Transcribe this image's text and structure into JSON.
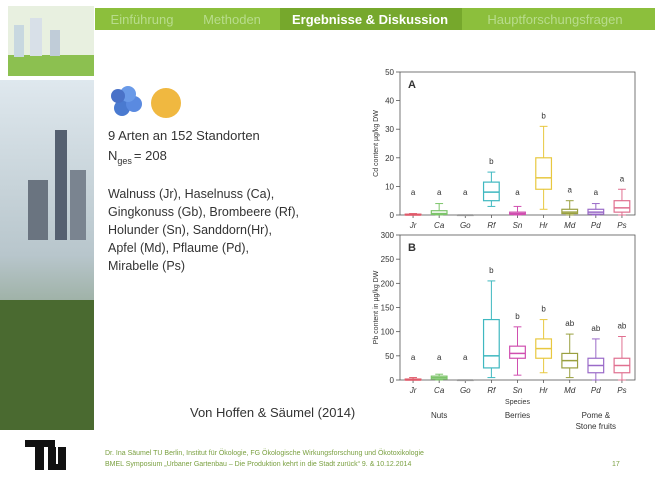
{
  "tabs": [
    "Einführung",
    "Methoden",
    "Ergebnisse & Diskussion",
    "Hauptforschungsfragen"
  ],
  "species_info": {
    "count_line": "9 Arten an 152 Standorten",
    "n_label": "N",
    "n_sub": "ges",
    "n_value": "= 208",
    "species_lines": [
      "Walnuss (Jr), Haselnuss (Ca),",
      "Gingkonuss (Gb), Brombeere (Rf),",
      "Holunder (Sn), Sanddorn(Hr),",
      "Apfel (Md), Pflaume (Pd),",
      "Mirabelle (Ps)"
    ]
  },
  "citation": "Von Hoffen & Säumel (2014)",
  "footer": {
    "lines": [
      "Dr. Ina Säumel TU Berlin, Institut für Ökologie, FG Ökologische Wirkungsforschung und Ökotoxikologie",
      "BMEL Symposium „Urbaner Gartenbau – Die Produktion kehrt in die Stadt zurück“ 9. & 10.12.2014"
    ],
    "page": "17"
  },
  "chart_data": [
    {
      "type": "box",
      "panel": "A",
      "ylabel": "Cd content µg/kg DW",
      "categories": [
        "Jr",
        "Ca",
        "Go",
        "Rf",
        "Sn",
        "Hr",
        "Md",
        "Pd",
        "Ps"
      ],
      "colors": [
        "#e05a6a",
        "#7cc46a",
        "#999999",
        "#3fb8c0",
        "#d04fb0",
        "#e8c840",
        "#9aa040",
        "#9a6ac8",
        "#e07090"
      ],
      "boxes": [
        {
          "min": 0,
          "q1": 0,
          "median": 0,
          "q3": 0.3,
          "max": 0.5
        },
        {
          "min": 0,
          "q1": 0.2,
          "median": 0.5,
          "q3": 1.5,
          "max": 4
        },
        {
          "min": 0,
          "q1": 0,
          "median": 0,
          "q3": 0,
          "max": 0
        },
        {
          "min": 3,
          "q1": 5,
          "median": 8,
          "q3": 11.5,
          "max": 15
        },
        {
          "min": 0,
          "q1": 0.2,
          "median": 0.5,
          "q3": 1,
          "max": 3
        },
        {
          "min": 2,
          "q1": 9,
          "median": 13,
          "q3": 20,
          "max": 31
        },
        {
          "min": 0,
          "q1": 0.5,
          "median": 1,
          "q3": 2,
          "max": 5
        },
        {
          "min": 0,
          "q1": 0.3,
          "median": 1,
          "q3": 2,
          "max": 4
        },
        {
          "min": 0,
          "q1": 1,
          "median": 2.5,
          "q3": 5,
          "max": 9
        }
      ],
      "letters": [
        "a",
        "a",
        "a",
        "b",
        "a",
        "b",
        "a",
        "a",
        "a"
      ],
      "ylim": [
        0,
        50
      ],
      "yticks": [
        0,
        10,
        20,
        30,
        40,
        50
      ]
    },
    {
      "type": "box",
      "panel": "B",
      "ylabel": "Pb content in µg/kg DW",
      "xlabel": "Species",
      "categories": [
        "Jr",
        "Ca",
        "Go",
        "Rf",
        "Sn",
        "Hr",
        "Md",
        "Pd",
        "Ps"
      ],
      "colors": [
        "#e05a6a",
        "#7cc46a",
        "#999999",
        "#3fb8c0",
        "#d04fb0",
        "#e8c840",
        "#9aa040",
        "#9a6ac8",
        "#e07090"
      ],
      "boxes": [
        {
          "min": 0,
          "q1": 0,
          "median": 0,
          "q3": 2,
          "max": 5
        },
        {
          "min": 0,
          "q1": 2,
          "median": 5,
          "q3": 8,
          "max": 12
        },
        {
          "min": 0,
          "q1": 0,
          "median": 0,
          "q3": 0,
          "max": 0
        },
        {
          "min": 5,
          "q1": 25,
          "median": 50,
          "q3": 125,
          "max": 205
        },
        {
          "min": 10,
          "q1": 45,
          "median": 55,
          "q3": 70,
          "max": 110
        },
        {
          "min": 15,
          "q1": 45,
          "median": 65,
          "q3": 85,
          "max": 125
        },
        {
          "min": 5,
          "q1": 25,
          "median": 40,
          "q3": 55,
          "max": 95
        },
        {
          "min": 0,
          "q1": 15,
          "median": 30,
          "q3": 45,
          "max": 85
        },
        {
          "min": 0,
          "q1": 15,
          "median": 30,
          "q3": 45,
          "max": 90
        }
      ],
      "letters": [
        "a",
        "a",
        "a",
        "b",
        "b",
        "b",
        "ab",
        "ab",
        "ab"
      ],
      "groups": [
        {
          "lines": [
            "Nuts"
          ]
        },
        {
          "lines": [
            "Berries"
          ]
        },
        {
          "lines": [
            "Pome &",
            "Stone fruits"
          ]
        }
      ],
      "ylim": [
        0,
        300
      ],
      "yticks": [
        0,
        50,
        100,
        150,
        200,
        250,
        300
      ]
    }
  ]
}
